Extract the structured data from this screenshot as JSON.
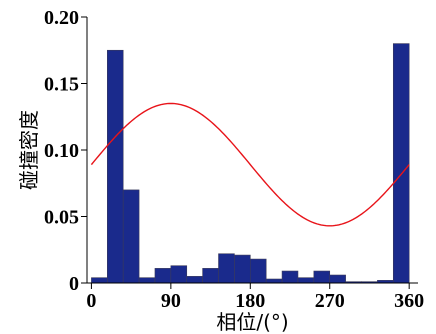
{
  "chart_data": {
    "type": "bar",
    "title": "",
    "xlabel": "相位/(°)",
    "ylabel": "碰撞密度",
    "xlim": [
      -5,
      370
    ],
    "ylim": [
      0,
      0.2
    ],
    "xticks": [
      0,
      90,
      180,
      270,
      360
    ],
    "xtick_labels": [
      "0",
      "90",
      "180",
      "270",
      "360"
    ],
    "yticks": [
      0,
      0.05,
      0.1,
      0.15,
      0.2
    ],
    "ytick_labels": [
      "0",
      "0.05",
      "0.10",
      "0.15",
      "0.20"
    ],
    "grid": false,
    "bin_width": 18,
    "bin_starts": [
      0,
      18,
      36,
      54,
      72,
      90,
      108,
      126,
      144,
      162,
      180,
      198,
      216,
      234,
      252,
      270,
      288,
      306,
      324,
      342
    ],
    "values": [
      0.004,
      0.175,
      0.07,
      0.004,
      0.011,
      0.013,
      0.005,
      0.011,
      0.022,
      0.021,
      0.018,
      0.003,
      0.009,
      0.004,
      0.009,
      0.006,
      0.001,
      0.001,
      0.002,
      0.18
    ],
    "bar_color": "#1a2a8c",
    "bar_edge_color": "#3a3a5a",
    "curve": {
      "type": "sinusoid",
      "color": "#e8141a",
      "mean": 0.089,
      "amplitude": 0.046,
      "peak_phase_deg": 90,
      "x_start": 0,
      "x_end": 360
    }
  }
}
